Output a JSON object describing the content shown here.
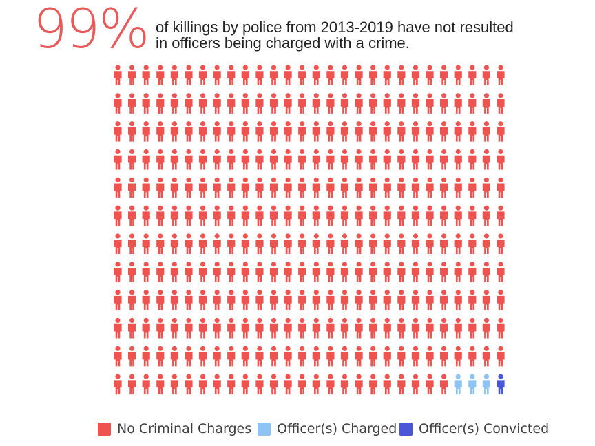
{
  "headline": {
    "percent": "99%",
    "caption_line1": "of killings by police from 2013-2019 have not resulted",
    "caption_line2": "in officers being charged with a crime."
  },
  "chart_data": {
    "type": "isotype",
    "rows": 12,
    "columns": 28,
    "categories": [
      {
        "label": "No Criminal Charges",
        "count": 332,
        "color": "#ee5350"
      },
      {
        "label": "Officer(s) Charged",
        "count": 3,
        "color": "#8ec4f3"
      },
      {
        "label": "Officer(s) Convicted",
        "count": 1,
        "color": "#4a57d6"
      }
    ],
    "fill_order": "row-major; non-charged categories occupy the final icons of the last row"
  }
}
